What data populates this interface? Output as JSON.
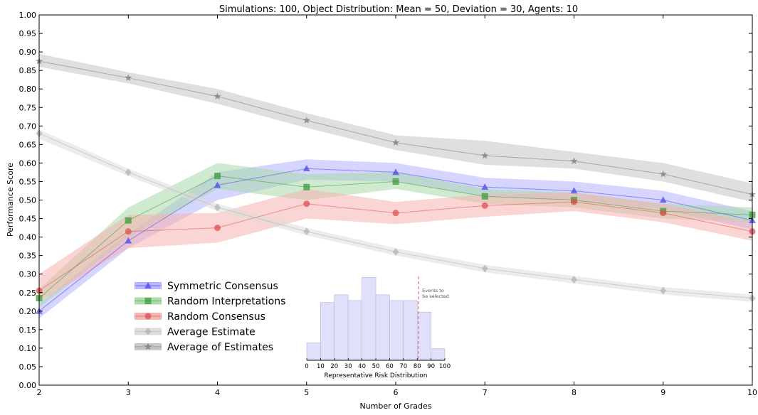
{
  "chart_data": {
    "type": "line",
    "title": "Simulations: 100, Object Distribution: Mean = 50, Deviation = 30, Agents: 10",
    "xlabel": "Number of Grades",
    "ylabel": "Performance Score",
    "x": [
      2,
      3,
      4,
      5,
      6,
      7,
      8,
      9,
      10
    ],
    "xlim": [
      2,
      10
    ],
    "ylim": [
      0,
      1
    ],
    "x_ticks": [
      "2",
      "3",
      "4",
      "5",
      "6",
      "7",
      "8",
      "9",
      "10"
    ],
    "y_ticks": [
      "0.00",
      "0.05",
      "0.10",
      "0.15",
      "0.20",
      "0.25",
      "0.30",
      "0.35",
      "0.40",
      "0.45",
      "0.50",
      "0.55",
      "0.60",
      "0.65",
      "0.70",
      "0.75",
      "0.80",
      "0.85",
      "0.90",
      "0.95",
      "1.00"
    ],
    "grid": false,
    "legend_position": "lower-left",
    "series": [
      {
        "name": "Symmetric Consensus",
        "marker": "triangle",
        "color": "#4a4ae6",
        "band_color": "#b3b3ff",
        "values": [
          0.2,
          0.39,
          0.54,
          0.585,
          0.575,
          0.535,
          0.525,
          0.5,
          0.445
        ],
        "lower": [
          0.18,
          0.37,
          0.5,
          0.555,
          0.55,
          0.51,
          0.5,
          0.475,
          0.42
        ],
        "upper": [
          0.22,
          0.41,
          0.575,
          0.61,
          0.6,
          0.56,
          0.55,
          0.525,
          0.47
        ]
      },
      {
        "name": "Random Interpretations",
        "marker": "square",
        "color": "#3c9c3c",
        "band_color": "#a8d8a8",
        "values": [
          0.235,
          0.445,
          0.565,
          0.535,
          0.55,
          0.51,
          0.5,
          0.47,
          0.46
        ],
        "lower": [
          0.21,
          0.4,
          0.53,
          0.5,
          0.53,
          0.49,
          0.48,
          0.45,
          0.44
        ],
        "upper": [
          0.26,
          0.48,
          0.6,
          0.57,
          0.575,
          0.53,
          0.52,
          0.49,
          0.48
        ]
      },
      {
        "name": "Random Consensus",
        "marker": "circle",
        "color": "#e05050",
        "band_color": "#f7b0b0",
        "values": [
          0.255,
          0.415,
          0.425,
          0.49,
          0.465,
          0.485,
          0.495,
          0.465,
          0.415
        ],
        "lower": [
          0.225,
          0.37,
          0.385,
          0.45,
          0.435,
          0.455,
          0.47,
          0.44,
          0.39
        ],
        "upper": [
          0.3,
          0.46,
          0.465,
          0.53,
          0.495,
          0.515,
          0.52,
          0.49,
          0.44
        ]
      },
      {
        "name": "Average Estimate",
        "marker": "diamond",
        "color": "#b3b3b3",
        "band_color": "#dcdcdc",
        "values": [
          0.68,
          0.575,
          0.48,
          0.415,
          0.36,
          0.315,
          0.285,
          0.255,
          0.235
        ],
        "lower": [
          0.665,
          0.565,
          0.47,
          0.405,
          0.35,
          0.305,
          0.275,
          0.245,
          0.225
        ],
        "upper": [
          0.69,
          0.585,
          0.49,
          0.425,
          0.37,
          0.325,
          0.295,
          0.265,
          0.245
        ]
      },
      {
        "name": "Average of Estimates",
        "marker": "star",
        "color": "#7a7a7a",
        "band_color": "#c4c4c4",
        "values": [
          0.875,
          0.83,
          0.78,
          0.715,
          0.655,
          0.62,
          0.605,
          0.57,
          0.515
        ],
        "lower": [
          0.86,
          0.815,
          0.76,
          0.695,
          0.635,
          0.595,
          0.585,
          0.55,
          0.495
        ],
        "upper": [
          0.895,
          0.845,
          0.8,
          0.735,
          0.675,
          0.66,
          0.63,
          0.6,
          0.545
        ]
      }
    ],
    "inset": {
      "type": "bar",
      "xlabel": "Representative Risk Distribution",
      "x_ticks": [
        "0",
        "10",
        "20",
        "30",
        "40",
        "50",
        "60",
        "70",
        "80",
        "90",
        "100"
      ],
      "bin_edges": [
        0,
        10,
        20,
        30,
        40,
        50,
        60,
        70,
        80,
        90,
        100
      ],
      "values": [
        0.09,
        0.3,
        0.34,
        0.31,
        0.43,
        0.34,
        0.31,
        0.31,
        0.25,
        0.06
      ],
      "ylim": [
        0,
        0.45
      ],
      "bar_color": "#e0e0fa",
      "bar_edge": "#b8b8e8",
      "threshold": 81,
      "threshold_color": "#e87070",
      "annotation_lines": [
        "Events to",
        "be selected"
      ]
    }
  }
}
